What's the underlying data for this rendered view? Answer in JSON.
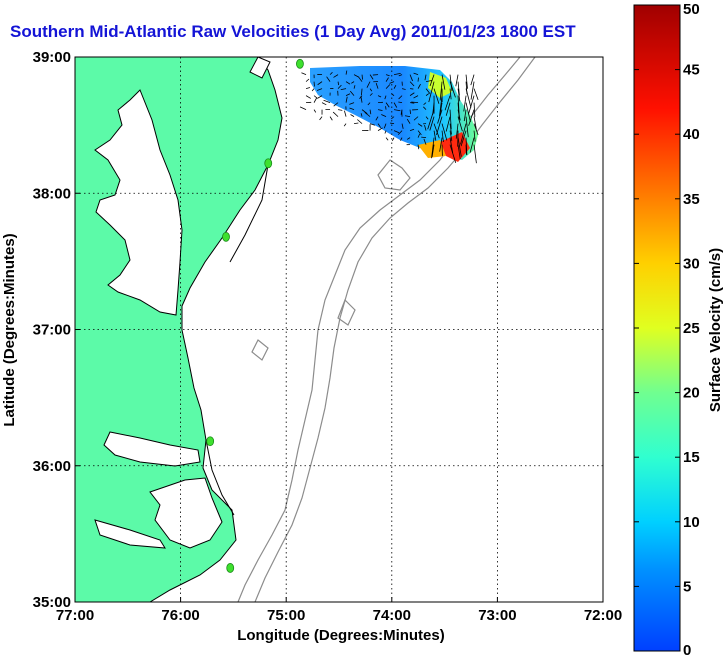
{
  "chart_data": {
    "type": "map-vector-field",
    "title": "Southern Mid-Atlantic Raw Velocities (1 Day Avg) 2011/01/23 1800 EST",
    "xlabel": "Longitude (Degrees:Minutes)",
    "ylabel": "Latitude (Degrees:Minutes)",
    "xlim": [
      -77,
      -72
    ],
    "ylim": [
      35,
      39
    ],
    "xticks": [
      {
        "value": -77,
        "label": "77:00"
      },
      {
        "value": -76,
        "label": "76:00"
      },
      {
        "value": -75,
        "label": "75:00"
      },
      {
        "value": -74,
        "label": "74:00"
      },
      {
        "value": -73,
        "label": "73:00"
      },
      {
        "value": -72,
        "label": "72:00"
      }
    ],
    "yticks": [
      {
        "value": 39,
        "label": "39:00"
      },
      {
        "value": 38,
        "label": "38:00"
      },
      {
        "value": 37,
        "label": "37:00"
      },
      {
        "value": 36,
        "label": "36:00"
      },
      {
        "value": 35,
        "label": "35:00"
      }
    ],
    "grid": true,
    "colorbar": {
      "label": "Surface Velocity (cm/s)",
      "min": 0,
      "max": 50,
      "ticks": [
        0,
        5,
        10,
        15,
        20,
        25,
        30,
        35,
        40,
        45,
        50
      ],
      "colormap": "jet"
    },
    "stations": [
      {
        "lon": -74.87,
        "lat": 38.95
      },
      {
        "lon": -75.17,
        "lat": 38.22
      },
      {
        "lon": -75.57,
        "lat": 37.68
      },
      {
        "lon": -75.72,
        "lat": 36.18
      },
      {
        "lon": -75.53,
        "lat": 35.25
      }
    ],
    "velocity_region": {
      "lon_range": [
        -74.85,
        -73.15
      ],
      "lat_range": [
        38.35,
        38.9
      ]
    },
    "colors": {
      "land": "#5cfaa8",
      "coast": "#000000",
      "bathymetry": "#8c8c8c",
      "station": "#3ee02e",
      "title": "#1414d6"
    }
  }
}
